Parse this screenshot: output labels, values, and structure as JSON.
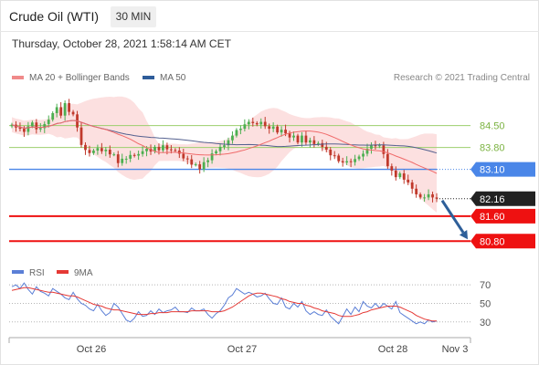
{
  "header": {
    "title": "Crude Oil (WTI)",
    "timeframe": "30 MIN",
    "datetime": "Thursday, October 28, 2021 1:58:14 AM CET"
  },
  "legend": {
    "items": [
      {
        "label": "MA 20 + Bollinger Bands",
        "color": "#f08a8a"
      },
      {
        "label": "MA 50",
        "color": "#2f5d9a"
      }
    ],
    "copyright": "Research © 2021 Trading Central"
  },
  "colors": {
    "up": "#4caf50",
    "down": "#c0392b",
    "ma20": "#f06a6a",
    "ma50": "#54608f",
    "bands": "#fbdada",
    "level_green": "#9ccf6d",
    "level_blue": "#4a86e8",
    "level_red": "#ee1111",
    "arrow": "#2e5f99",
    "rsi": "#5b7fd6",
    "rsi_ma": "#e53935"
  },
  "chart_data": [
    {
      "type": "candlestick",
      "x_ticks": [
        "Oct 26",
        "Oct 27",
        "Oct 28",
        "Nov 3"
      ],
      "ylim": [
        80.4,
        85.6
      ],
      "price_series": [
        84.53,
        84.44,
        84.4,
        84.3,
        84.48,
        84.6,
        84.38,
        84.42,
        84.55,
        84.69,
        84.9,
        85.09,
        84.82,
        85.22,
        84.94,
        84.86,
        84.44,
        83.88,
        83.72,
        83.62,
        83.7,
        83.78,
        83.68,
        83.73,
        83.58,
        83.58,
        83.3,
        83.44,
        83.44,
        83.56,
        83.54,
        83.59,
        83.68,
        83.76,
        83.67,
        83.82,
        83.71,
        83.87,
        83.74,
        83.72,
        83.7,
        83.6,
        83.45,
        83.42,
        83.25,
        83.26,
        83.1,
        83.33,
        83.39,
        83.61,
        83.68,
        83.82,
        83.87,
        84.03,
        84.18,
        84.36,
        84.4,
        84.54,
        84.62,
        84.58,
        84.54,
        84.62,
        84.48,
        84.4,
        84.47,
        84.28,
        84.37,
        84.25,
        84.12,
        84.18,
        83.96,
        84.18,
        83.96,
        84.03,
        83.91,
        83.94,
        83.82,
        83.73,
        83.55,
        83.54,
        83.36,
        83.32,
        83.36,
        83.33,
        83.43,
        83.51,
        83.6,
        83.76,
        83.88,
        83.84,
        83.87,
        83.59,
        83.2,
        83.06,
        82.85,
        82.97,
        82.77,
        82.68,
        82.48,
        82.3,
        82.2,
        82.2,
        82.3,
        82.2,
        82.16
      ],
      "levels": [
        {
          "label": "84.50",
          "value": 84.5,
          "kind": "resistance"
        },
        {
          "label": "83.80",
          "value": 83.8,
          "kind": "resistance"
        },
        {
          "label": "83.10",
          "value": 83.1,
          "kind": "pivot"
        },
        {
          "label": "82.16",
          "value": 82.16,
          "kind": "last"
        },
        {
          "label": "81.60",
          "value": 81.6,
          "kind": "support"
        },
        {
          "label": "80.80",
          "value": 80.8,
          "kind": "support"
        }
      ]
    },
    {
      "type": "line",
      "legend": [
        "RSI",
        "9MA"
      ],
      "y_ticks": [
        70,
        50,
        30
      ],
      "ylim": [
        15,
        80
      ],
      "rsi": [
        68,
        70,
        66,
        72,
        65,
        60,
        68,
        63,
        61,
        58,
        66,
        63,
        60,
        56,
        54,
        62,
        55,
        50,
        48,
        44,
        42,
        49,
        42,
        37,
        40,
        50,
        46,
        39,
        32,
        30,
        34,
        41,
        36,
        37,
        42,
        38,
        44,
        40,
        42,
        43,
        46,
        41,
        41,
        40,
        45,
        42,
        42,
        44,
        38,
        34,
        39,
        42,
        48,
        56,
        59,
        66,
        63,
        60,
        62,
        60,
        57,
        58,
        61,
        55,
        50,
        49,
        56,
        46,
        44,
        50,
        46,
        52,
        42,
        38,
        41,
        38,
        37,
        43,
        36,
        32,
        28,
        36,
        44,
        38,
        46,
        41,
        52,
        47,
        45,
        50,
        45,
        50,
        47,
        44,
        52,
        40,
        37,
        34,
        31,
        28,
        30,
        28,
        32,
        30,
        31
      ],
      "rsi_ma": [
        64,
        65,
        66,
        67,
        67,
        66,
        65,
        64,
        63,
        62,
        62,
        61,
        60,
        59,
        58,
        58,
        57,
        55,
        53,
        51,
        49,
        48,
        47,
        45,
        44,
        43,
        43,
        42,
        41,
        40,
        39,
        38,
        38,
        38,
        39,
        39,
        40,
        40,
        40,
        41,
        41,
        41,
        41,
        41,
        42,
        42,
        42,
        42,
        42,
        41,
        41,
        41,
        42,
        44,
        46,
        49,
        52,
        55,
        58,
        60,
        61,
        61,
        60,
        59,
        58,
        57,
        55,
        54,
        52,
        51,
        50,
        50,
        48,
        47,
        45,
        44,
        42,
        41,
        40,
        39,
        37,
        36,
        36,
        36,
        37,
        38,
        40,
        41,
        43,
        44,
        45,
        46,
        47,
        47,
        47,
        46,
        44,
        42,
        40,
        37,
        35,
        33,
        32,
        31,
        31
      ]
    }
  ]
}
